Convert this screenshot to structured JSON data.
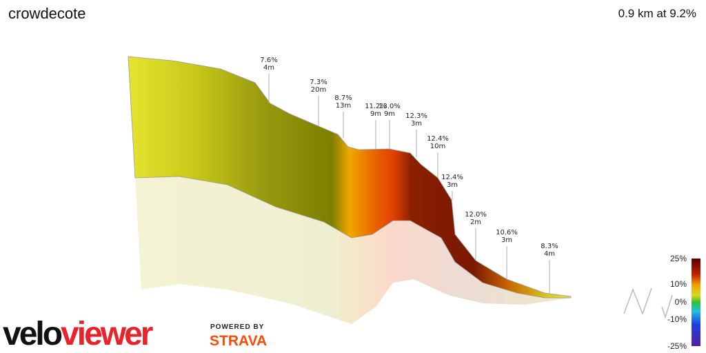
{
  "header": {
    "title": "crowdecote",
    "summary": "0.9 km at 9.2%"
  },
  "annotations": [
    {
      "grade": "7.6%",
      "length": "4m"
    },
    {
      "grade": "7.3%",
      "length": "20m"
    },
    {
      "grade": "8.7%",
      "length": "13m"
    },
    {
      "grade": "11.2%",
      "length": "9m"
    },
    {
      "grade": "13.0%",
      "length": "9m"
    },
    {
      "grade": "12.3%",
      "length": "3m"
    },
    {
      "grade": "12.4%",
      "length": "10m"
    },
    {
      "grade": "12.4%",
      "length": "3m"
    },
    {
      "grade": "12.0%",
      "length": "2m"
    },
    {
      "grade": "10.6%",
      "length": "3m"
    },
    {
      "grade": "8.3%",
      "length": "4m"
    }
  ],
  "legend": {
    "ticks": [
      "25%",
      "10%",
      "0%",
      "-10%",
      "-25%"
    ]
  },
  "brand": {
    "logo_part1": "velo",
    "logo_part2": "viewer",
    "powered": "POWERED BY",
    "strava": "STRAVA"
  }
}
